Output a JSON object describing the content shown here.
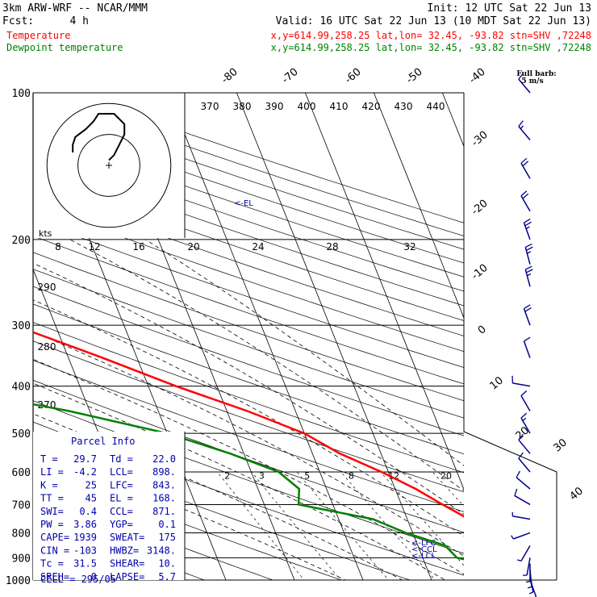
{
  "header": {
    "model": "3km ARW-WRF -- NCAR/MMM",
    "init": "Init: 12 UTC Sat 22 Jun 13",
    "fcst_label": "Fcst:",
    "fcst_value": "4 h",
    "valid": "Valid: 16 UTC Sat 22 Jun 13 (10 MDT Sat 22 Jun 13)",
    "temp_label": "Temperature",
    "temp_info": "x,y=614.99,258.25   lat,lon= 32.45, -93.82  stn=SHV ,72248",
    "dew_label": "Dewpoint temperature",
    "dew_info": "x,y=614.99,258.25   lat,lon= 32.45, -93.82  stn=SHV ,72248",
    "barb_title": "Full barb:",
    "barb_sub": "5 m/s",
    "colors": {
      "temperature": "#ff0000",
      "dewpoint": "#008000",
      "info": "#0000aa"
    }
  },
  "parcel": {
    "title": "Parcel Info",
    "rows": [
      [
        "T  =",
        "29.7",
        "Td =",
        "22.0"
      ],
      [
        "LI =",
        "-4.2",
        "LCL=",
        "898."
      ],
      [
        "K  =",
        "25",
        "LFC=",
        "843."
      ],
      [
        "TT =",
        "45",
        "EL =",
        "168."
      ],
      [
        "SWI=",
        "0.4",
        "CCL=",
        "871."
      ],
      [
        "PW =",
        "3.86",
        "YGP=",
        "0.1"
      ],
      [
        "CAPE=",
        "1939",
        "SWEAT=",
        "175"
      ],
      [
        "CIN =",
        "-103",
        "HWBZ=",
        "3148."
      ],
      [
        "Tc =",
        "31.5",
        "SHEAR=",
        "10."
      ],
      [
        "SREH=",
        "0",
        "LAPSE=",
        "5.7"
      ]
    ],
    "cell": "CELL = 295/05"
  },
  "chart_data": {
    "type": "skew-t",
    "pressure_levels": [
      100,
      200,
      300,
      400,
      500,
      600,
      700,
      800,
      900,
      1000
    ],
    "pressure_labels": [
      "100",
      "200",
      "300",
      "400",
      "500",
      "600",
      "700",
      "800",
      "900",
      "1000"
    ],
    "isotherm_labels": [
      "-80",
      "-70",
      "-60",
      "-50",
      "-40",
      "-30",
      "-20",
      "-10",
      "0",
      "10",
      "20",
      "30",
      "40"
    ],
    "theta_labels": [
      "370",
      "380",
      "390",
      "400",
      "410",
      "420",
      "430",
      "440"
    ],
    "theta_side_labels": [
      "290",
      "280",
      "270"
    ],
    "mixing_ratio_labels": [
      "2",
      "3",
      "5",
      "8",
      "12",
      "20"
    ],
    "hodo_speed_labels": [
      "8",
      "12",
      "16",
      "20",
      "24",
      "28",
      "32"
    ],
    "hodo_unit": "kts",
    "level_marks": [
      "<-EL",
      "<-LFC",
      "<-CCL",
      "<-LCL"
    ],
    "temperature": {
      "name": "Temperature",
      "p": [
        100,
        130,
        160,
        180,
        200,
        250,
        300,
        350,
        400,
        450,
        500,
        550,
        600,
        650,
        700,
        750,
        800,
        850,
        900,
        950,
        1000
      ],
      "t": [
        -76,
        -71,
        -68,
        -68,
        -64,
        -49,
        -36,
        -25,
        -16,
        -7,
        0,
        4,
        9,
        13,
        16,
        19,
        21,
        24,
        27,
        27,
        29.7
      ]
    },
    "dewpoint": {
      "name": "Dewpoint temperature",
      "p": [
        100,
        140,
        160,
        200,
        250,
        285,
        320,
        345,
        365,
        400,
        450,
        500,
        550,
        600,
        650,
        700,
        750,
        800,
        850,
        900,
        950,
        1000
      ],
      "td": [
        -107,
        -105,
        -96,
        -72,
        -55,
        -43,
        -58,
        -83,
        -79,
        -51,
        -33,
        -20,
        -12,
        -6,
        -4,
        -5,
        5,
        9,
        14,
        15,
        22,
        22
      ]
    },
    "hodograph": {
      "u": [
        0,
        2,
        4,
        6,
        6,
        2,
        -2,
        -4,
        -6,
        -9,
        -13,
        -14,
        -14
      ],
      "v": [
        2,
        4,
        8,
        12,
        16,
        20,
        20,
        20,
        17,
        14,
        11,
        8,
        5
      ]
    },
    "wind": {
      "p": [
        1000,
        975,
        950,
        925,
        900,
        850,
        800,
        750,
        700,
        650,
        600,
        550,
        500,
        450,
        400,
        350,
        300,
        250,
        225,
        200,
        175,
        150,
        125,
        100
      ],
      "spd": [
        4,
        4,
        5,
        6,
        5,
        3,
        3,
        6,
        8,
        9,
        11,
        12,
        15,
        12,
        8,
        10,
        20,
        25,
        25,
        27,
        22,
        18,
        13,
        12
      ],
      "dir": [
        160,
        170,
        175,
        180,
        190,
        210,
        250,
        280,
        300,
        310,
        320,
        320,
        330,
        330,
        280,
        340,
        340,
        345,
        345,
        340,
        330,
        330,
        320,
        320
      ]
    }
  }
}
